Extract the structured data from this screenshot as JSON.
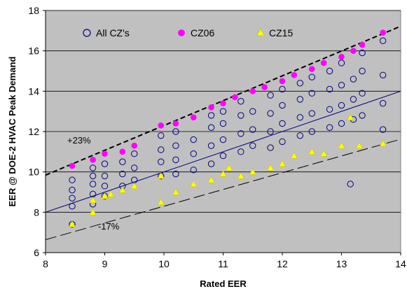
{
  "chart_data": {
    "type": "scatter",
    "title": "",
    "xlabel": "Rated EER",
    "ylabel": "EER @ DOE-2 HVAC Peak Demand",
    "xlim": [
      8,
      14
    ],
    "ylim": [
      6,
      18
    ],
    "x_ticks": [
      "8",
      "9",
      "10",
      "11",
      "12",
      "13",
      "14"
    ],
    "y_ticks": [
      "6",
      "8",
      "10",
      "12",
      "14",
      "16",
      "18"
    ],
    "grid": "horizontal",
    "plot_background": "#c0c0c0",
    "legend_position": "top-inside",
    "series": [
      {
        "name": "All CZ's",
        "color": "#000080",
        "marker": "open-circle",
        "points": [
          [
            8.45,
            7.4
          ],
          [
            8.45,
            8.3
          ],
          [
            8.45,
            8.7
          ],
          [
            8.45,
            9.1
          ],
          [
            8.45,
            9.6
          ],
          [
            8.8,
            8.4
          ],
          [
            8.8,
            8.9
          ],
          [
            8.8,
            9.4
          ],
          [
            8.8,
            9.8
          ],
          [
            8.8,
            10.2
          ],
          [
            9.0,
            8.8
          ],
          [
            9.0,
            9.3
          ],
          [
            9.0,
            9.8
          ],
          [
            9.0,
            10.4
          ],
          [
            9.3,
            9.3
          ],
          [
            9.3,
            9.9
          ],
          [
            9.3,
            10.5
          ],
          [
            9.5,
            9.6
          ],
          [
            9.5,
            10.2
          ],
          [
            9.5,
            10.9
          ],
          [
            9.95,
            9.8
          ],
          [
            9.95,
            10.5
          ],
          [
            9.95,
            11.1
          ],
          [
            9.95,
            11.8
          ],
          [
            10.2,
            9.9
          ],
          [
            10.2,
            10.6
          ],
          [
            10.2,
            11.3
          ],
          [
            10.2,
            12.0
          ],
          [
            10.5,
            10.1
          ],
          [
            10.5,
            10.9
          ],
          [
            10.5,
            11.6
          ],
          [
            10.8,
            10.4
          ],
          [
            10.8,
            11.3
          ],
          [
            10.8,
            12.2
          ],
          [
            10.8,
            12.8
          ],
          [
            11.0,
            10.8
          ],
          [
            11.0,
            11.6
          ],
          [
            11.0,
            12.4
          ],
          [
            11.0,
            13.0
          ],
          [
            11.3,
            11.0
          ],
          [
            11.3,
            11.9
          ],
          [
            11.3,
            12.8
          ],
          [
            11.3,
            13.5
          ],
          [
            11.5,
            11.3
          ],
          [
            11.5,
            12.1
          ],
          [
            11.5,
            13.0
          ],
          [
            11.8,
            11.2
          ],
          [
            11.8,
            12.0
          ],
          [
            11.8,
            12.9
          ],
          [
            11.8,
            13.8
          ],
          [
            12.0,
            11.5
          ],
          [
            12.0,
            12.4
          ],
          [
            12.0,
            13.3
          ],
          [
            12.0,
            14.1
          ],
          [
            12.3,
            11.8
          ],
          [
            12.3,
            12.7
          ],
          [
            12.3,
            13.6
          ],
          [
            12.3,
            14.4
          ],
          [
            12.5,
            12.0
          ],
          [
            12.5,
            12.9
          ],
          [
            12.5,
            13.9
          ],
          [
            12.5,
            14.7
          ],
          [
            12.8,
            12.2
          ],
          [
            12.8,
            13.1
          ],
          [
            12.8,
            14.1
          ],
          [
            12.8,
            15.0
          ],
          [
            13.0,
            12.4
          ],
          [
            13.0,
            13.3
          ],
          [
            13.0,
            14.3
          ],
          [
            13.0,
            15.4
          ],
          [
            13.15,
            9.4
          ],
          [
            13.2,
            12.6
          ],
          [
            13.2,
            13.6
          ],
          [
            13.2,
            14.6
          ],
          [
            13.35,
            12.8
          ],
          [
            13.35,
            13.9
          ],
          [
            13.35,
            15.0
          ],
          [
            13.35,
            15.9
          ],
          [
            13.7,
            12.1
          ],
          [
            13.7,
            13.4
          ],
          [
            13.7,
            14.8
          ],
          [
            13.7,
            16.5
          ]
        ]
      },
      {
        "name": "CZ06",
        "color": "#ff00ff",
        "marker": "filled-circle",
        "points": [
          [
            8.45,
            10.3
          ],
          [
            8.8,
            10.6
          ],
          [
            9.0,
            10.9
          ],
          [
            9.3,
            11.0
          ],
          [
            9.5,
            11.3
          ],
          [
            9.95,
            12.3
          ],
          [
            10.2,
            12.4
          ],
          [
            10.5,
            12.7
          ],
          [
            10.8,
            13.2
          ],
          [
            11.0,
            13.4
          ],
          [
            11.2,
            13.7
          ],
          [
            11.5,
            14.0
          ],
          [
            11.7,
            14.2
          ],
          [
            12.0,
            14.5
          ],
          [
            12.2,
            14.8
          ],
          [
            12.5,
            15.1
          ],
          [
            12.7,
            15.4
          ],
          [
            13.0,
            15.7
          ],
          [
            13.2,
            16.0
          ],
          [
            13.35,
            16.3
          ],
          [
            13.7,
            16.9
          ]
        ]
      },
      {
        "name": "CZ15",
        "color": "#ffff00",
        "marker": "filled-triangle",
        "points": [
          [
            8.45,
            7.4
          ],
          [
            8.8,
            8.0
          ],
          [
            8.8,
            8.6
          ],
          [
            9.0,
            8.8
          ],
          [
            9.1,
            8.9
          ],
          [
            9.3,
            9.1
          ],
          [
            9.5,
            9.3
          ],
          [
            9.95,
            8.5
          ],
          [
            9.95,
            9.8
          ],
          [
            10.2,
            9.0
          ],
          [
            10.5,
            9.4
          ],
          [
            10.8,
            9.6
          ],
          [
            11.0,
            9.9
          ],
          [
            11.1,
            10.2
          ],
          [
            11.3,
            9.8
          ],
          [
            11.5,
            10.0
          ],
          [
            11.8,
            10.2
          ],
          [
            12.0,
            10.4
          ],
          [
            12.2,
            10.8
          ],
          [
            12.5,
            11.0
          ],
          [
            12.7,
            10.9
          ],
          [
            13.0,
            11.3
          ],
          [
            13.15,
            12.7
          ],
          [
            13.3,
            11.3
          ],
          [
            13.7,
            11.4
          ]
        ]
      }
    ],
    "reference_lines": [
      {
        "style": "dashed-bold",
        "color": "#000000",
        "points": [
          [
            8,
            9.84
          ],
          [
            14,
            17.22
          ]
        ]
      },
      {
        "style": "solid",
        "color": "#000080",
        "points": [
          [
            8,
            8.0
          ],
          [
            14,
            14.0
          ]
        ]
      },
      {
        "style": "dashed-long",
        "color": "#000000",
        "points": [
          [
            8,
            6.64
          ],
          [
            14,
            11.62
          ]
        ]
      }
    ],
    "annotations": [
      "+23%",
      "-17%"
    ]
  }
}
